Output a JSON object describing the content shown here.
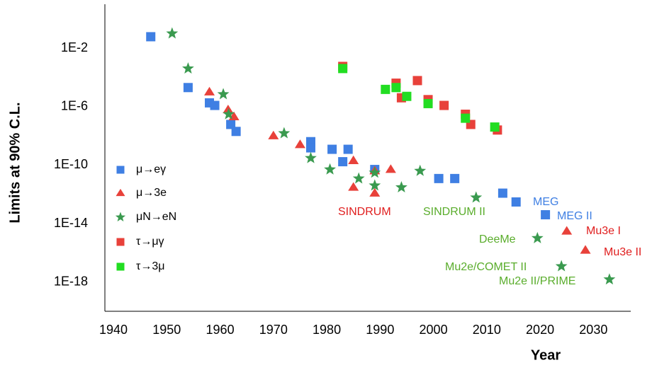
{
  "chart_data": {
    "type": "scatter",
    "xlabel": "Year",
    "ylabel": "Limits at 90% C.L.",
    "log_y": true,
    "grid": false,
    "legend": "left",
    "xlim": [
      1938,
      2037
    ],
    "ylim": [
      1e-20,
      10
    ],
    "xticks": [
      1940,
      1950,
      1960,
      1970,
      1980,
      1990,
      2000,
      2010,
      2020,
      2030
    ],
    "yticks": [
      {
        "value": 1e-18,
        "label": "1E-18"
      },
      {
        "value": 1e-14,
        "label": "1E-14"
      },
      {
        "value": 1e-10,
        "label": "1E-10"
      },
      {
        "value": 1e-06,
        "label": "1E-6"
      },
      {
        "value": 0.01,
        "label": "1E-2"
      }
    ],
    "series": [
      {
        "name": "μ→eγ",
        "color": "#3f7fe3",
        "marker": "square",
        "x": [
          1947,
          1954,
          1958,
          1959,
          1962,
          1963,
          1977,
          1977,
          1981,
          1983,
          1984,
          1989,
          2001,
          2004,
          2013,
          2015.5,
          2021
        ],
        "values": [
          0.06,
          2e-05,
          1.8e-06,
          1.2e-06,
          6e-08,
          2e-08,
          4e-09,
          1.5e-09,
          1.2e-09,
          1.7e-10,
          1.2e-09,
          5e-11,
          1.2e-11,
          1.2e-11,
          1.2e-12,
          3e-13,
          4e-14
        ]
      },
      {
        "name": "μ→3e",
        "color": "#e8413a",
        "marker": "triangle",
        "x": [
          1958,
          1961.5,
          1962.6,
          1970,
          1975,
          1985,
          1985,
          1989,
          1989,
          1992,
          2025,
          2028.5
        ],
        "values": [
          1e-05,
          6e-07,
          2e-07,
          1e-08,
          2.5e-09,
          2e-10,
          3e-12,
          4e-11,
          1.2e-12,
          5e-11,
          3e-15,
          1.5e-16
        ]
      },
      {
        "name": "μN→eN",
        "color": "#3a9a4f",
        "marker": "star",
        "x": [
          1951,
          1954,
          1960.6,
          1961.6,
          1972,
          1977,
          1980.6,
          1986,
          1989,
          1989,
          1994,
          1997.5,
          2008,
          2019.5,
          2024,
          2033
        ],
        "values": [
          0.1,
          0.0004,
          7e-06,
          3e-07,
          1.5e-08,
          3e-10,
          5e-11,
          1.2e-11,
          4e-12,
          3e-11,
          3e-12,
          4e-11,
          6e-13,
          1e-15,
          1.2e-17,
          1.5e-18
        ]
      },
      {
        "name": "τ→μγ",
        "color": "#e8413a",
        "marker": "square",
        "x": [
          1983,
          1993,
          1994,
          1997,
          1999,
          2002,
          2006,
          2007,
          2012
        ],
        "values": [
          0.00056,
          4e-05,
          4e-06,
          6e-05,
          3e-06,
          1.2e-06,
          3e-07,
          6e-08,
          2.5e-08
        ]
      },
      {
        "name": "τ→3μ",
        "color": "#22dd22",
        "marker": "square",
        "x": [
          1983,
          1991,
          1993,
          1995,
          1999,
          2006,
          2011.5
        ],
        "values": [
          0.0004,
          1.5e-05,
          2e-05,
          5e-06,
          1.6e-06,
          1.6e-07,
          4e-08
        ]
      }
    ],
    "annotations": [
      {
        "text": "SINDRUM",
        "color": "#e01e1e"
      },
      {
        "text": "SINDRUM II",
        "color": "#5aad2c"
      },
      {
        "text": "MEG",
        "color": "#3f7fe3"
      },
      {
        "text": "MEG II",
        "color": "#3f7fe3"
      },
      {
        "text": "Mu3e I",
        "color": "#e01e1e"
      },
      {
        "text": "Mu3e II",
        "color": "#e01e1e"
      },
      {
        "text": "DeeMe",
        "color": "#5aad2c"
      },
      {
        "text": "Mu2e/COMET II",
        "color": "#5aad2c"
      },
      {
        "text": "Mu2e II/PRIME",
        "color": "#5aad2c"
      }
    ]
  }
}
